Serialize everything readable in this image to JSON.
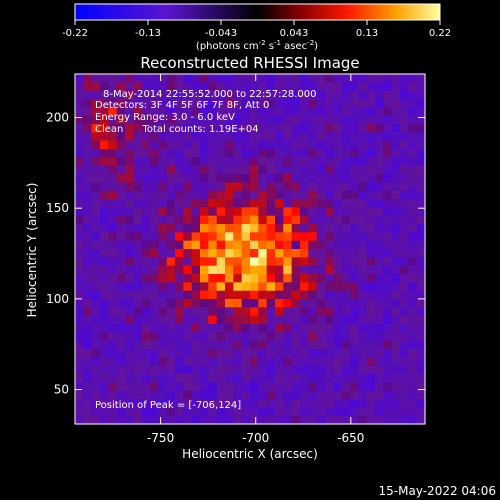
{
  "chart_data": {
    "type": "heatmap",
    "title": "Reconstructed RHESSI Image",
    "xlabel": "Heliocentric X (arcsec)",
    "ylabel": "Heliocentric Y (arcsec)",
    "xlim": [
      -795,
      -611
    ],
    "ylim": [
      31,
      224
    ],
    "x_ticks": [
      -750,
      -700,
      -650
    ],
    "y_ticks": [
      50,
      100,
      150,
      200
    ],
    "colorbar": {
      "min": -0.22,
      "max": 0.22,
      "ticks": [
        "-0.22",
        "-0.13",
        "-0.043",
        "0.043",
        "0.13",
        "0.22"
      ],
      "units_parts": [
        "(photons cm",
        "-2",
        " s",
        "-1",
        " asec",
        "-2",
        ")"
      ]
    },
    "annotations": [
      "8-May-2014 22:55:52.000 to 22:57:28.000",
      "Detectors: 3F 4F 5F 6F 7F 8F, Att 0",
      "Energy Range: 3.0 - 6.0 keV",
      "Clean      Total counts: 1.19E+04"
    ],
    "peak_label": "Position of Peak = [-706,124]",
    "peak": {
      "x": -706,
      "y": 124,
      "value": 0.22
    },
    "grid": false
  },
  "footer": {
    "timestamp": "15-May-2022 04:06"
  }
}
